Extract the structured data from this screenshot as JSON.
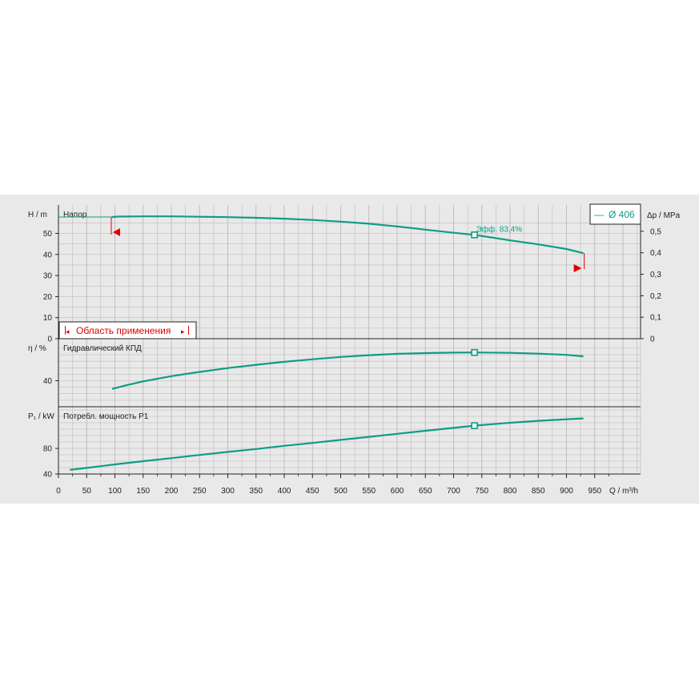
{
  "chart_data": {
    "type": "line",
    "legend": {
      "symbol": "—",
      "label": "Ø 406",
      "position": "top-right"
    },
    "x_axis": {
      "label": "Q / m³/h",
      "ticks": [
        0,
        50,
        100,
        150,
        200,
        250,
        300,
        350,
        400,
        450,
        500,
        550,
        600,
        650,
        700,
        750,
        800,
        850,
        900,
        950
      ],
      "range": [
        0,
        1025
      ]
    },
    "colors": {
      "curve": "#0f9c86",
      "limit": "#e00000",
      "grid": "#b4b4b4",
      "panel": "#e9e9e9"
    },
    "panels": [
      {
        "id": "head",
        "title": "Напор",
        "ylabel": "H / m",
        "ylabel_right": "Δp / MPa",
        "yticks": [
          0,
          10,
          20,
          30,
          40,
          50
        ],
        "yticks_right": [
          "0",
          "0,1",
          "0,2",
          "0,3",
          "0,4",
          "0,5"
        ],
        "ylim": [
          0,
          59
        ],
        "series": [
          {
            "x": [
              95,
              105,
              150,
              200,
              250,
              300,
              350,
              400,
              450,
              500,
              550,
              600,
              650,
              700,
              737,
              800,
              850,
              900,
              930
            ],
            "y": [
              57.8,
              58.0,
              58.1,
              58.1,
              57.9,
              57.7,
              57.4,
              57.0,
              56.4,
              55.6,
              54.6,
              53.3,
              51.8,
              50.3,
              49.3,
              46.7,
              44.8,
              42.6,
              40.6
            ]
          }
        ],
        "duty_point": {
          "x": 737,
          "y": 49.3,
          "label": "Эфф. 83,4%"
        },
        "range_markers": {
          "min_x": 95,
          "max_x": 930
        },
        "range_box": "Область применения"
      },
      {
        "id": "efficiency",
        "title": "Гидравлический КПД",
        "ylabel": "η / %",
        "yticks": [
          40
        ],
        "ylim": [
          0,
          92
        ],
        "series": [
          {
            "x": [
              95,
              120,
              150,
              200,
              250,
              300,
              350,
              400,
              450,
              500,
              550,
              600,
              650,
              700,
              737,
              800,
              850,
              900,
              930
            ],
            "y": [
              27.5,
              33.0,
              39.0,
              47.0,
              53.5,
              59.5,
              64.5,
              69.0,
              73.0,
              76.5,
              79.3,
              81.3,
              82.5,
              83.2,
              83.4,
              82.8,
              81.6,
              79.8,
              77.5
            ]
          }
        ],
        "duty_point": {
          "x": 737,
          "y": 83.4
        }
      },
      {
        "id": "power",
        "title": "Потребл. мощность P1",
        "ylabel": "P₁ / kW",
        "yticks": [
          40,
          80
        ],
        "ylim": [
          40,
          144
        ],
        "series": [
          {
            "x": [
              20,
              50,
              100,
              150,
              200,
              250,
              300,
              350,
              400,
              450,
              500,
              550,
              600,
              650,
              700,
              737,
              800,
              850,
              900,
              930
            ],
            "y": [
              46.5,
              49.5,
              55.0,
              60.0,
              64.8,
              69.8,
              74.5,
              79.0,
              84.0,
              88.5,
              93.2,
              98.0,
              102.8,
              107.5,
              112.0,
              115.5,
              120.0,
              123.0,
              125.5,
              126.8
            ]
          }
        ],
        "duty_point": {
          "x": 737,
          "y": 115.5
        }
      }
    ]
  }
}
